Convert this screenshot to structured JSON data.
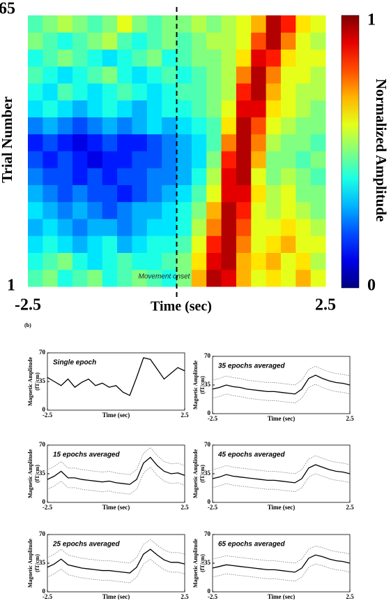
{
  "chart_data": [
    {
      "type": "heatmap",
      "xlabel": "Time (sec)",
      "ylabel": "Trial Number",
      "zlabel": "Normalized Amplitude",
      "xlim": [
        -2.5,
        2.5
      ],
      "ylim": [
        1,
        65
      ],
      "xticks": [
        -2.5,
        2.5
      ],
      "yticks": [
        1,
        65
      ],
      "zlim": [
        0,
        1
      ],
      "zticks": [
        0,
        1
      ],
      "colormap": "jet",
      "vline": 0,
      "annotation": "Movement onset",
      "panel": "(b)",
      "z": [
        [
          0.45,
          0.5,
          0.4,
          0.45,
          0.5,
          0.4,
          0.45,
          0.5,
          0.45,
          0.4,
          0.5,
          0.7,
          0.95,
          0.9,
          0.7,
          0.6,
          0.65,
          0.6,
          0.7,
          0.6
        ],
        [
          0.4,
          0.45,
          0.5,
          0.4,
          0.35,
          0.4,
          0.45,
          0.4,
          0.4,
          0.45,
          0.5,
          0.65,
          0.9,
          0.95,
          0.7,
          0.65,
          0.7,
          0.6,
          0.65,
          0.55
        ],
        [
          0.35,
          0.4,
          0.35,
          0.3,
          0.35,
          0.4,
          0.3,
          0.35,
          0.4,
          0.4,
          0.45,
          0.6,
          0.85,
          0.95,
          0.75,
          0.6,
          0.65,
          0.7,
          0.6,
          0.6
        ],
        [
          0.3,
          0.35,
          0.3,
          0.25,
          0.3,
          0.3,
          0.25,
          0.3,
          0.35,
          0.35,
          0.4,
          0.55,
          0.75,
          0.95,
          0.8,
          0.6,
          0.6,
          0.65,
          0.6,
          0.55
        ],
        [
          0.35,
          0.3,
          0.25,
          0.3,
          0.25,
          0.2,
          0.25,
          0.3,
          0.3,
          0.35,
          0.4,
          0.5,
          0.7,
          0.95,
          0.85,
          0.6,
          0.55,
          0.6,
          0.55,
          0.5
        ],
        [
          0.3,
          0.25,
          0.2,
          0.25,
          0.2,
          0.2,
          0.15,
          0.2,
          0.25,
          0.3,
          0.35,
          0.45,
          0.6,
          0.9,
          0.9,
          0.65,
          0.55,
          0.6,
          0.5,
          0.5
        ],
        [
          0.25,
          0.2,
          0.2,
          0.15,
          0.2,
          0.15,
          0.2,
          0.2,
          0.25,
          0.25,
          0.3,
          0.4,
          0.55,
          0.9,
          0.95,
          0.6,
          0.5,
          0.55,
          0.5,
          0.45
        ],
        [
          0.2,
          0.15,
          0.2,
          0.15,
          0.1,
          0.15,
          0.15,
          0.2,
          0.2,
          0.25,
          0.3,
          0.35,
          0.5,
          0.85,
          0.95,
          0.7,
          0.5,
          0.5,
          0.45,
          0.5
        ],
        [
          0.15,
          0.2,
          0.15,
          0.1,
          0.15,
          0.2,
          0.15,
          0.15,
          0.2,
          0.25,
          0.3,
          0.35,
          0.45,
          0.75,
          0.95,
          0.75,
          0.55,
          0.5,
          0.5,
          0.45
        ],
        [
          0.25,
          0.3,
          0.25,
          0.2,
          0.25,
          0.3,
          0.25,
          0.3,
          0.35,
          0.3,
          0.35,
          0.4,
          0.45,
          0.65,
          0.95,
          0.8,
          0.6,
          0.55,
          0.5,
          0.5
        ],
        [
          0.35,
          0.4,
          0.35,
          0.3,
          0.35,
          0.4,
          0.35,
          0.3,
          0.35,
          0.4,
          0.4,
          0.45,
          0.5,
          0.6,
          0.9,
          0.9,
          0.65,
          0.6,
          0.55,
          0.5
        ],
        [
          0.4,
          0.35,
          0.45,
          0.4,
          0.35,
          0.4,
          0.45,
          0.4,
          0.35,
          0.4,
          0.45,
          0.45,
          0.5,
          0.55,
          0.85,
          0.95,
          0.7,
          0.6,
          0.55,
          0.55
        ],
        [
          0.45,
          0.4,
          0.35,
          0.4,
          0.45,
          0.5,
          0.4,
          0.35,
          0.4,
          0.45,
          0.4,
          0.45,
          0.5,
          0.55,
          0.75,
          0.95,
          0.75,
          0.6,
          0.6,
          0.55
        ],
        [
          0.4,
          0.45,
          0.5,
          0.45,
          0.4,
          0.35,
          0.4,
          0.45,
          0.5,
          0.4,
          0.45,
          0.5,
          0.5,
          0.55,
          0.65,
          0.9,
          0.85,
          0.65,
          0.6,
          0.6
        ],
        [
          0.5,
          0.45,
          0.4,
          0.45,
          0.5,
          0.55,
          0.45,
          0.4,
          0.45,
          0.5,
          0.45,
          0.5,
          0.55,
          0.55,
          0.6,
          0.8,
          0.95,
          0.75,
          0.6,
          0.55
        ],
        [
          0.45,
          0.5,
          0.55,
          0.5,
          0.45,
          0.5,
          0.6,
          0.5,
          0.45,
          0.5,
          0.5,
          0.55,
          0.5,
          0.55,
          0.6,
          0.7,
          0.95,
          0.85,
          0.65,
          0.6
        ]
      ]
    },
    {
      "type": "line",
      "title": "Single epoch",
      "xlabel": "Time (sec)",
      "ylabel": "Magnetic Amplitude",
      "yunit": "(fT/cm)",
      "xlim": [
        -2.5,
        2.5
      ],
      "ylim": [
        0,
        70
      ],
      "xticks": [
        -2.5,
        2.5
      ],
      "yticks": [
        0,
        35,
        70
      ],
      "x": [
        -2.5,
        -2.25,
        -2,
        -1.75,
        -1.5,
        -1.25,
        -1,
        -0.75,
        -0.5,
        -0.25,
        0,
        0.25,
        0.5,
        0.75,
        1,
        1.25,
        1.5,
        1.75,
        2,
        2.25,
        2.5
      ],
      "series": [
        {
          "color": "#000000",
          "line_style": "solid",
          "values": [
            40,
            35,
            30,
            38,
            28,
            34,
            38,
            30,
            33,
            28,
            30,
            22,
            18,
            40,
            64,
            62,
            50,
            38,
            45,
            52,
            48
          ]
        }
      ]
    },
    {
      "type": "line",
      "title": "35 epochs averaged",
      "xlabel": "Time (sec)",
      "ylabel": "Magnetic Amplitude",
      "yunit": "(fT/cm)",
      "xlim": [
        -2.5,
        2.5
      ],
      "ylim": [
        0,
        70
      ],
      "xticks": [
        -2.5,
        2.5
      ],
      "yticks": [
        0,
        35,
        70
      ],
      "x": [
        -2.5,
        -2.25,
        -2,
        -1.75,
        -1.5,
        -1.25,
        -1,
        -0.75,
        -0.5,
        -0.25,
        0,
        0.25,
        0.5,
        0.75,
        1,
        1.25,
        1.5,
        1.75,
        2,
        2.25,
        2.5
      ],
      "series": [
        {
          "color": "#888888",
          "line_style": "dotted",
          "values": [
            41,
            43,
            46,
            44,
            43,
            41,
            40,
            39,
            38,
            38,
            37,
            36,
            35,
            41,
            54,
            58,
            54,
            51,
            49,
            48,
            46
          ]
        },
        {
          "color": "#000000",
          "line_style": "solid",
          "values": [
            30,
            32,
            35,
            33,
            32,
            30,
            29,
            28,
            27,
            27,
            26,
            25,
            24,
            30,
            43,
            47,
            43,
            40,
            38,
            37,
            35
          ]
        },
        {
          "color": "#888888",
          "line_style": "dotted",
          "values": [
            19,
            21,
            24,
            22,
            21,
            19,
            18,
            17,
            16,
            16,
            15,
            14,
            13,
            19,
            32,
            36,
            32,
            29,
            27,
            26,
            24
          ]
        }
      ]
    },
    {
      "type": "line",
      "title": "15 epochs averaged",
      "xlabel": "Time (sec)",
      "ylabel": "Magnetic Amplitude",
      "yunit": "(fT/cm)",
      "xlim": [
        -2.5,
        2.5
      ],
      "ylim": [
        0,
        70
      ],
      "xticks": [
        -2.5,
        2.5
      ],
      "yticks": [
        0,
        35,
        70
      ],
      "x": [
        -2.5,
        -2.25,
        -2,
        -1.75,
        -1.5,
        -1.25,
        -1,
        -0.75,
        -0.5,
        -0.25,
        0,
        0.25,
        0.5,
        0.75,
        1,
        1.25,
        1.5,
        1.75,
        2,
        2.25,
        2.5
      ],
      "series": [
        {
          "color": "#888888",
          "line_style": "dotted",
          "values": [
            40,
            44,
            50,
            42,
            42,
            40,
            39,
            38,
            37,
            38,
            36,
            35,
            34,
            40,
            60,
            67,
            57,
            50,
            47,
            48,
            45
          ]
        },
        {
          "color": "#000000",
          "line_style": "solid",
          "values": [
            28,
            32,
            38,
            30,
            30,
            28,
            27,
            26,
            25,
            26,
            24,
            23,
            22,
            28,
            48,
            55,
            45,
            38,
            35,
            36,
            33
          ]
        },
        {
          "color": "#888888",
          "line_style": "dotted",
          "values": [
            16,
            20,
            26,
            18,
            18,
            16,
            15,
            14,
            13,
            14,
            12,
            11,
            10,
            16,
            36,
            43,
            33,
            26,
            23,
            24,
            21
          ]
        }
      ]
    },
    {
      "type": "line",
      "title": "45 epochs averaged",
      "xlabel": "Time (sec)",
      "ylabel": "Magnetic Amplitude",
      "yunit": "(fT/cm)",
      "xlim": [
        -2.5,
        2.5
      ],
      "ylim": [
        0,
        70
      ],
      "xticks": [
        -2.5,
        2.5
      ],
      "yticks": [
        0,
        35,
        70
      ],
      "x": [
        -2.5,
        -2.25,
        -2,
        -1.75,
        -1.5,
        -1.25,
        -1,
        -0.75,
        -0.5,
        -0.25,
        0,
        0.25,
        0.5,
        0.75,
        1,
        1.25,
        1.5,
        1.75,
        2,
        2.25,
        2.5
      ],
      "series": [
        {
          "color": "#888888",
          "line_style": "dotted",
          "values": [
            40,
            42,
            45,
            43,
            42,
            41,
            40,
            39,
            38,
            38,
            37,
            36,
            35,
            40,
            53,
            57,
            54,
            51,
            49,
            48,
            46
          ]
        },
        {
          "color": "#000000",
          "line_style": "solid",
          "values": [
            29,
            31,
            34,
            32,
            31,
            30,
            29,
            28,
            27,
            27,
            26,
            25,
            24,
            29,
            42,
            46,
            43,
            40,
            38,
            37,
            35
          ]
        },
        {
          "color": "#888888",
          "line_style": "dotted",
          "values": [
            18,
            20,
            23,
            21,
            20,
            19,
            18,
            17,
            16,
            16,
            15,
            14,
            13,
            18,
            31,
            35,
            32,
            29,
            27,
            26,
            24
          ]
        }
      ]
    },
    {
      "type": "line",
      "title": "25 epochs averaged",
      "xlabel": "Time (sec)",
      "ylabel": "Magnetic Amplitude",
      "yunit": "(fT/cm)",
      "xlim": [
        -2.5,
        2.5
      ],
      "ylim": [
        0,
        70
      ],
      "xticks": [
        -2.5,
        2.5
      ],
      "yticks": [
        0,
        35,
        70
      ],
      "x": [
        -2.5,
        -2.25,
        -2,
        -1.75,
        -1.5,
        -1.25,
        -1,
        -0.75,
        -0.5,
        -0.25,
        0,
        0.25,
        0.5,
        0.75,
        1,
        1.25,
        1.5,
        1.75,
        2,
        2.25,
        2.5
      ],
      "series": [
        {
          "color": "#888888",
          "line_style": "dotted",
          "values": [
            42,
            46,
            52,
            45,
            43,
            41,
            40,
            39,
            38,
            38,
            37,
            36,
            35,
            42,
            58,
            64,
            57,
            51,
            48,
            48,
            46
          ]
        },
        {
          "color": "#000000",
          "line_style": "solid",
          "values": [
            30,
            34,
            40,
            33,
            31,
            29,
            28,
            27,
            26,
            26,
            25,
            24,
            23,
            30,
            46,
            52,
            45,
            39,
            36,
            36,
            34
          ]
        },
        {
          "color": "#888888",
          "line_style": "dotted",
          "values": [
            18,
            22,
            28,
            21,
            19,
            17,
            16,
            15,
            14,
            14,
            13,
            12,
            11,
            18,
            34,
            40,
            33,
            27,
            24,
            24,
            22
          ]
        }
      ]
    },
    {
      "type": "line",
      "title": "65 epochs averaged",
      "xlabel": "Time (sec)",
      "ylabel": "Magnetic Amplitude",
      "yunit": "(fT/cm)",
      "xlim": [
        -2.5,
        2.5
      ],
      "ylim": [
        0,
        70
      ],
      "xticks": [
        -2.5,
        2.5
      ],
      "yticks": [
        0,
        35,
        70
      ],
      "x": [
        -2.5,
        -2.25,
        -2,
        -1.75,
        -1.5,
        -1.25,
        -1,
        -0.75,
        -0.5,
        -0.25,
        0,
        0.25,
        0.5,
        0.75,
        1,
        1.25,
        1.5,
        1.75,
        2,
        2.25,
        2.5
      ],
      "series": [
        {
          "color": "#888888",
          "line_style": "dotted",
          "values": [
            40,
            42,
            44,
            43,
            42,
            41,
            40,
            39,
            38,
            38,
            37,
            36,
            35,
            40,
            52,
            56,
            54,
            51,
            49,
            48,
            46
          ]
        },
        {
          "color": "#000000",
          "line_style": "solid",
          "values": [
            29,
            31,
            33,
            32,
            31,
            30,
            29,
            28,
            27,
            27,
            26,
            25,
            24,
            29,
            41,
            45,
            43,
            40,
            38,
            37,
            35
          ]
        },
        {
          "color": "#888888",
          "line_style": "dotted",
          "values": [
            18,
            20,
            22,
            21,
            20,
            19,
            18,
            17,
            16,
            16,
            15,
            14,
            13,
            18,
            30,
            34,
            32,
            29,
            27,
            26,
            24
          ]
        }
      ]
    }
  ]
}
